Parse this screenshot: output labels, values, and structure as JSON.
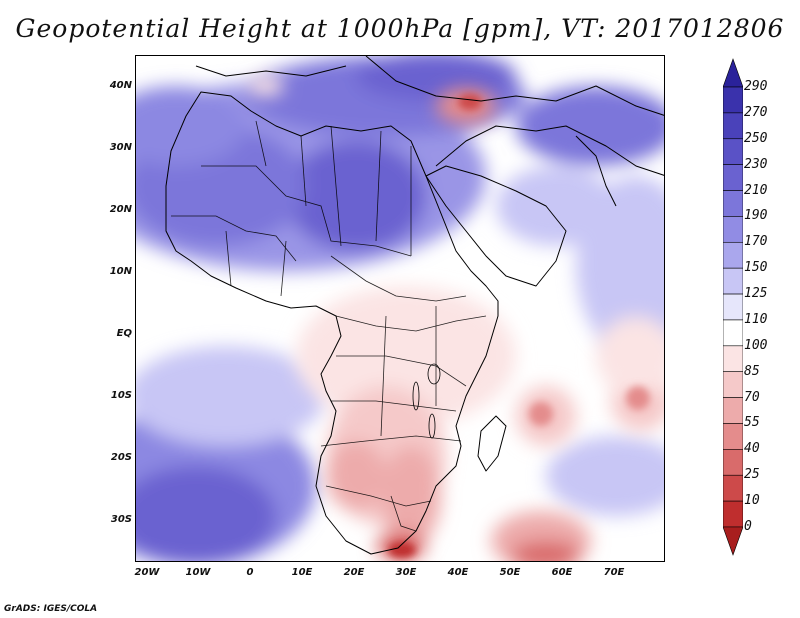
{
  "title": "Geopotential Height at 1000hPa [gpm], VT: 2017012806",
  "credit": "GrADS: IGES/COLA",
  "map": {
    "variable": "Geopotential Height at 1000hPa",
    "units": "gpm",
    "valid_time": "2017012806",
    "lat_labels": [
      "40N",
      "30N",
      "20N",
      "10N",
      "EQ",
      "10S",
      "20S",
      "30S"
    ],
    "lon_labels": [
      "20W",
      "10W",
      "0",
      "10E",
      "20E",
      "30E",
      "40E",
      "50E",
      "60E",
      "70E"
    ]
  },
  "colorbar": {
    "labels": [
      "290",
      "270",
      "250",
      "230",
      "210",
      "190",
      "170",
      "150",
      "125",
      "110",
      "100",
      "85",
      "70",
      "55",
      "40",
      "25",
      "10",
      "0"
    ],
    "colors": [
      "#2a229a",
      "#3a32ac",
      "#4a42ba",
      "#5a52c6",
      "#6a62d0",
      "#7c76da",
      "#918ce4",
      "#aaa7ed",
      "#c8c6f5",
      "#e6e6fb",
      "#ffffff",
      "#fbe4e4",
      "#f5c9c9",
      "#edabab",
      "#e48c8c",
      "#d96b6b",
      "#cd4a4a",
      "#bf2e2e",
      "#a81e1e"
    ]
  }
}
